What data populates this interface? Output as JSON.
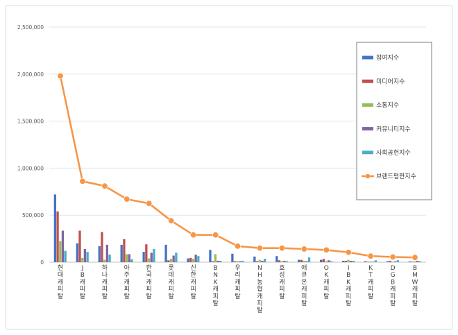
{
  "chart_data": {
    "type": "bar",
    "title": "",
    "xlabel": "",
    "ylabel": "",
    "ylim": [
      0,
      2500000
    ],
    "yticks": [
      0,
      500000,
      1000000,
      1500000,
      2000000,
      2500000
    ],
    "ytick_labels": [
      "0",
      "500,000",
      "1,000,000",
      "1,500,000",
      "2,000,000",
      "2,500,000"
    ],
    "grid": true,
    "legend_position": "right",
    "categories": [
      "현대캐피탈",
      "JB캐피탈",
      "하나캐피탈",
      "아주캐피탈",
      "한국캐피탈",
      "롯데캐피탈",
      "신한캐피탈",
      "BNK캐피탈",
      "우리캐피탈",
      "NH농협캐피탈",
      "효성캐피탈",
      "애큐온캐피탈",
      "OK캐피탈",
      "IBK캐피탈",
      "KT캐피탈",
      "DGB캐피탈",
      "BMW캐피탈"
    ],
    "series": [
      {
        "name": "참여지수",
        "color": "#4472c4",
        "kind": "bar",
        "values": [
          720000,
          200000,
          170000,
          185000,
          110000,
          185000,
          40000,
          130000,
          90000,
          60000,
          65000,
          25000,
          25000,
          15000,
          10000,
          10000,
          8000
        ]
      },
      {
        "name": "미디어지수",
        "color": "#c0504d",
        "kind": "bar",
        "values": [
          540000,
          335000,
          320000,
          245000,
          190000,
          20000,
          45000,
          10000,
          10000,
          10000,
          20000,
          25000,
          35000,
          15000,
          5000,
          15000,
          5000
        ]
      },
      {
        "name": "소통지수",
        "color": "#9bbb59",
        "kind": "bar",
        "values": [
          225000,
          45000,
          25000,
          85000,
          40000,
          35000,
          35000,
          85000,
          10000,
          25000,
          10000,
          15000,
          10000,
          25000,
          8000,
          5000,
          10000
        ]
      },
      {
        "name": "커뮤니티지수",
        "color": "#8064a2",
        "kind": "bar",
        "values": [
          335000,
          140000,
          185000,
          85000,
          100000,
          70000,
          80000,
          15000,
          10000,
          15000,
          15000,
          10000,
          20000,
          15000,
          5000,
          8000,
          15000
        ]
      },
      {
        "name": "사회공헌지수",
        "color": "#4bacc6",
        "kind": "bar",
        "values": [
          120000,
          110000,
          80000,
          30000,
          140000,
          100000,
          65000,
          15000,
          15000,
          35000,
          10000,
          50000,
          10000,
          15000,
          20000,
          20000,
          10000
        ]
      },
      {
        "name": "브랜드평판지수",
        "color": "#f79646",
        "kind": "line",
        "values": [
          1980000,
          860000,
          810000,
          670000,
          625000,
          440000,
          290000,
          290000,
          170000,
          150000,
          150000,
          140000,
          130000,
          105000,
          65000,
          55000,
          50000
        ]
      }
    ]
  }
}
